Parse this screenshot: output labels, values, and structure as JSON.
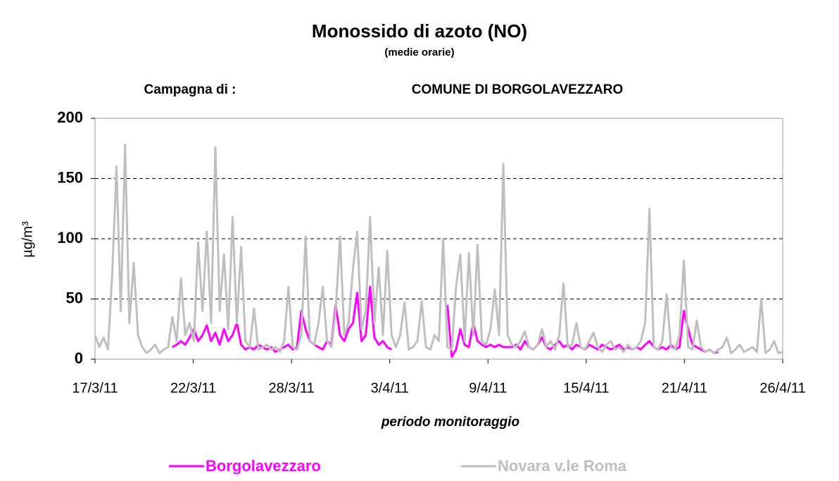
{
  "chart_data": {
    "type": "line",
    "title": "Monossido di azoto (NO)",
    "subtitle": "(medie orarie)",
    "campaign_label": "Campagna di :",
    "campaign_name": "COMUNE DI BORGOLAVEZZARO",
    "x_label": "periodo monitoraggio",
    "y_label": "µg/m³",
    "xlim": [
      0,
      40
    ],
    "xticks": [
      {
        "value": 0,
        "label": "17/3/11"
      },
      {
        "value": 5.714,
        "label": "22/3/11"
      },
      {
        "value": 11.429,
        "label": "28/3/11"
      },
      {
        "value": 17.143,
        "label": "3/4/11"
      },
      {
        "value": 22.857,
        "label": "9/4/11"
      },
      {
        "value": 28.571,
        "label": "15/4/11"
      },
      {
        "value": 34.286,
        "label": "21/4/11"
      },
      {
        "value": 40,
        "label": "26/4/11"
      }
    ],
    "ylim": [
      0,
      200
    ],
    "yticks": [
      0,
      50,
      100,
      150,
      200
    ],
    "grid": true,
    "legend": "bottom",
    "x": [
      0,
      0.25,
      0.5,
      0.75,
      1,
      1.25,
      1.5,
      1.75,
      2,
      2.25,
      2.5,
      2.75,
      3,
      3.25,
      3.5,
      3.75,
      4,
      4.25,
      4.5,
      4.75,
      5,
      5.25,
      5.5,
      5.75,
      6,
      6.25,
      6.5,
      6.75,
      7,
      7.25,
      7.5,
      7.75,
      8,
      8.25,
      8.5,
      8.75,
      9,
      9.25,
      9.5,
      9.75,
      10,
      10.25,
      10.5,
      10.75,
      11,
      11.25,
      11.5,
      11.75,
      12,
      12.25,
      12.5,
      12.75,
      13,
      13.25,
      13.5,
      13.75,
      14,
      14.25,
      14.5,
      14.75,
      15,
      15.25,
      15.5,
      15.75,
      16,
      16.25,
      16.5,
      16.75,
      17,
      17.25,
      17.5,
      17.75,
      18,
      18.25,
      18.5,
      18.75,
      19,
      19.25,
      19.5,
      19.75,
      20,
      20.25,
      20.5,
      20.75,
      21,
      21.25,
      21.5,
      21.75,
      22,
      22.25,
      22.5,
      22.75,
      23,
      23.25,
      23.5,
      23.75,
      24,
      24.25,
      24.5,
      24.75,
      25,
      25.25,
      25.5,
      25.75,
      26,
      26.25,
      26.5,
      26.75,
      27,
      27.25,
      27.5,
      27.75,
      28,
      28.25,
      28.5,
      28.75,
      29,
      29.25,
      29.5,
      29.75,
      30,
      30.25,
      30.5,
      30.75,
      31,
      31.25,
      31.5,
      31.75,
      32,
      32.25,
      32.5,
      32.75,
      33,
      33.25,
      33.5,
      33.75,
      34,
      34.25,
      34.5,
      34.75,
      35,
      35.25,
      35.5,
      35.75,
      36,
      36.25,
      36.5,
      36.75,
      37,
      37.25,
      37.5,
      37.75,
      38,
      38.25,
      38.5,
      38.75,
      39,
      39.25,
      39.5,
      39.75,
      40
    ],
    "series": [
      {
        "name": "Borgolavezzaro",
        "color": "#ff00ff",
        "values": [
          null,
          null,
          null,
          null,
          null,
          null,
          null,
          null,
          null,
          null,
          null,
          null,
          null,
          null,
          null,
          null,
          null,
          null,
          10,
          12,
          15,
          12,
          18,
          25,
          15,
          20,
          28,
          15,
          22,
          12,
          25,
          15,
          20,
          30,
          12,
          8,
          10,
          8,
          12,
          10,
          8,
          10,
          6,
          8,
          10,
          12,
          8,
          10,
          40,
          25,
          15,
          12,
          10,
          8,
          15,
          12,
          45,
          20,
          15,
          25,
          30,
          55,
          15,
          20,
          60,
          18,
          12,
          15,
          10,
          8,
          null,
          null,
          null,
          null,
          null,
          null,
          null,
          null,
          null,
          null,
          null,
          null,
          45,
          2,
          8,
          25,
          12,
          10,
          30,
          15,
          12,
          10,
          12,
          10,
          12,
          10,
          10,
          10,
          12,
          8,
          15,
          10,
          8,
          12,
          18,
          10,
          8,
          12,
          15,
          10,
          12,
          8,
          12,
          10,
          8,
          12,
          10,
          8,
          12,
          10,
          8,
          10,
          12,
          8,
          10,
          8,
          10,
          8,
          12,
          15,
          10,
          8,
          10,
          8,
          12,
          8,
          10,
          40,
          25,
          12,
          10,
          8,
          6,
          8,
          5,
          6,
          null,
          null,
          null,
          null,
          null,
          null,
          null,
          null,
          null,
          null,
          null,
          null,
          null,
          null,
          null
        ]
      },
      {
        "name": "Novara v.le Roma",
        "color": "#bfbfbf",
        "values": [
          20,
          10,
          18,
          8,
          70,
          160,
          40,
          178,
          30,
          80,
          20,
          10,
          5,
          8,
          12,
          5,
          8,
          10,
          35,
          15,
          67,
          20,
          30,
          15,
          97,
          40,
          106,
          30,
          176,
          40,
          87,
          25,
          118,
          30,
          93,
          15,
          10,
          42,
          8,
          10,
          12,
          8,
          10,
          6,
          15,
          60,
          10,
          8,
          20,
          102,
          15,
          12,
          30,
          60,
          15,
          10,
          40,
          102,
          20,
          30,
          75,
          106,
          25,
          40,
          118,
          30,
          76,
          20,
          90,
          20,
          10,
          20,
          47,
          8,
          10,
          15,
          48,
          10,
          8,
          20,
          15,
          100,
          10,
          8,
          60,
          87,
          15,
          88,
          20,
          95,
          15,
          12,
          25,
          58,
          20,
          162,
          20,
          12,
          10,
          15,
          23,
          10,
          8,
          12,
          25,
          10,
          15,
          8,
          20,
          63,
          10,
          12,
          30,
          10,
          8,
          15,
          22,
          10,
          6,
          12,
          15,
          8,
          10,
          6,
          12,
          8,
          10,
          15,
          30,
          125,
          10,
          8,
          15,
          54,
          10,
          8,
          20,
          82,
          10,
          8,
          32,
          10,
          6,
          8,
          5,
          8,
          10,
          18,
          5,
          8,
          12,
          6,
          8,
          10,
          6,
          50,
          5,
          8,
          15,
          5,
          6
        ]
      }
    ]
  }
}
